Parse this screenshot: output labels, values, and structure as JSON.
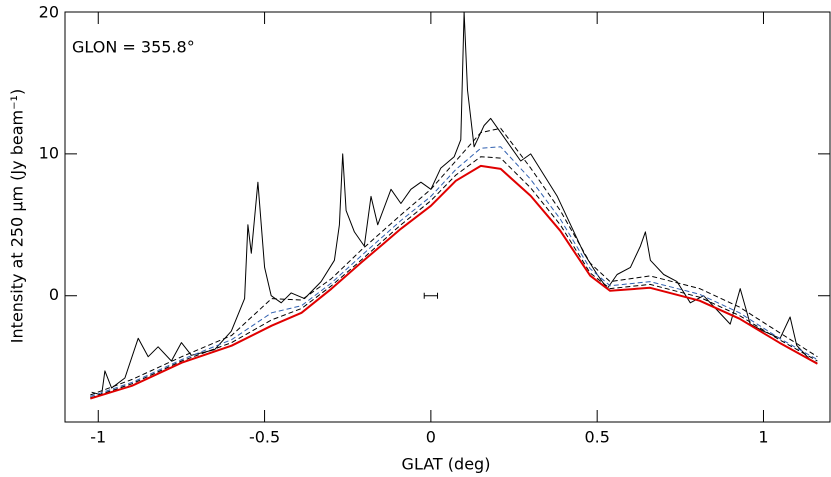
{
  "chart_data": {
    "type": "line",
    "xlabel": "GLAT (deg)",
    "ylabel": "Intensity at 250 μm (Jy beam⁻¹)",
    "annotation": "GLON = 355.8°",
    "xlim": [
      -1.1,
      1.2
    ],
    "ylim": [
      -8.9,
      20
    ],
    "xticks": [
      -1,
      -0.5,
      0,
      0.5,
      1
    ],
    "yticks": [
      0,
      10,
      20
    ],
    "errorbar": {
      "x": 0,
      "y": 0,
      "xerr": 0.02
    },
    "series": [
      {
        "color": "#000000",
        "style": "solid",
        "x": [
          -1.02,
          -0.99,
          -0.98,
          -0.96,
          -0.92,
          -0.88,
          -0.85,
          -0.82,
          -0.78,
          -0.75,
          -0.72,
          -0.65,
          -0.6,
          -0.56,
          -0.55,
          -0.54,
          -0.52,
          -0.5,
          -0.48,
          -0.45,
          -0.42,
          -0.38,
          -0.33,
          -0.29,
          -0.275,
          -0.265,
          -0.255,
          -0.23,
          -0.2,
          -0.18,
          -0.16,
          -0.12,
          -0.09,
          -0.06,
          -0.03,
          0.0,
          0.03,
          0.07,
          0.09,
          0.1,
          0.11,
          0.13,
          0.16,
          0.18,
          0.21,
          0.24,
          0.27,
          0.3,
          0.34,
          0.38,
          0.42,
          0.46,
          0.5,
          0.53,
          0.56,
          0.6,
          0.63,
          0.645,
          0.66,
          0.7,
          0.74,
          0.78,
          0.82,
          0.86,
          0.9,
          0.93,
          0.96,
          1.0,
          1.05,
          1.08,
          1.1,
          1.14,
          1.16
        ],
        "values": [
          -6.8,
          -7.0,
          -5.3,
          -6.5,
          -5.8,
          -3.0,
          -4.3,
          -3.6,
          -4.6,
          -3.3,
          -4.2,
          -3.8,
          -2.5,
          -0.2,
          5.0,
          3.0,
          8.0,
          2.0,
          0.0,
          -0.5,
          0.2,
          -0.2,
          1.0,
          2.5,
          5.0,
          10.0,
          6.0,
          4.5,
          3.5,
          7.0,
          5.0,
          7.5,
          6.5,
          7.5,
          8.0,
          7.5,
          9.0,
          9.8,
          11.0,
          20.0,
          14.5,
          10.5,
          12.0,
          12.5,
          11.5,
          10.5,
          9.5,
          10.0,
          8.5,
          7.0,
          5.0,
          3.0,
          1.5,
          0.5,
          1.5,
          2.0,
          3.5,
          4.5,
          2.5,
          1.5,
          1.0,
          -0.5,
          0.0,
          -1.0,
          -2.0,
          0.5,
          -2.0,
          -2.5,
          -3.0,
          -1.5,
          -3.5,
          -4.5,
          -4.7
        ]
      },
      {
        "color": "#000000",
        "style": "dashed",
        "x": [
          -1.024,
          -0.898,
          -0.749,
          -0.599,
          -0.479,
          -0.389,
          -0.299,
          -0.21,
          -0.09,
          0.0,
          0.075,
          0.15,
          0.21,
          0.3,
          0.389,
          0.479,
          0.539,
          0.659,
          0.808,
          0.928,
          1.048,
          1.162
        ],
        "values": [
          -7.0,
          -5.9,
          -4.3,
          -2.8,
          -0.2,
          -0.3,
          1.2,
          3.2,
          5.7,
          7.5,
          9.5,
          11.5,
          11.8,
          9.0,
          6.0,
          2.3,
          1.0,
          1.4,
          0.5,
          -0.8,
          -2.6,
          -4.3
        ]
      },
      {
        "color": "#3060b0",
        "style": "dashed",
        "x": [
          -1.024,
          -0.898,
          -0.749,
          -0.599,
          -0.479,
          -0.389,
          -0.299,
          -0.21,
          -0.09,
          0.0,
          0.075,
          0.15,
          0.21,
          0.3,
          0.389,
          0.479,
          0.539,
          0.659,
          0.808,
          0.928,
          1.048,
          1.162
        ],
        "values": [
          -7.1,
          -6.1,
          -4.5,
          -3.1,
          -1.2,
          -0.7,
          0.9,
          2.8,
          5.3,
          7.0,
          8.9,
          10.4,
          10.5,
          8.2,
          5.4,
          1.9,
          0.7,
          1.0,
          0.1,
          -1.2,
          -3.0,
          -4.5
        ]
      },
      {
        "color": "#000000",
        "style": "dashed",
        "x": [
          -1.024,
          -0.898,
          -0.749,
          -0.599,
          -0.479,
          -0.389,
          -0.299,
          -0.21,
          -0.09,
          0.0,
          0.075,
          0.15,
          0.21,
          0.3,
          0.389,
          0.479,
          0.539,
          0.659,
          0.808,
          0.928,
          1.048,
          1.162
        ],
        "values": [
          -7.2,
          -6.2,
          -4.6,
          -3.3,
          -1.7,
          -0.9,
          0.7,
          2.5,
          5.0,
          6.7,
          8.5,
          9.8,
          9.7,
          7.6,
          5.0,
          1.6,
          0.5,
          0.8,
          -0.1,
          -1.4,
          -3.1,
          -4.6
        ]
      },
      {
        "color": "#e00000",
        "style": "solid",
        "x": [
          -1.024,
          -0.898,
          -0.749,
          -0.599,
          -0.479,
          -0.389,
          -0.299,
          -0.21,
          -0.09,
          0.0,
          0.075,
          0.15,
          0.21,
          0.3,
          0.389,
          0.479,
          0.539,
          0.659,
          0.808,
          0.928,
          1.048,
          1.162
        ],
        "values": [
          -7.25,
          -6.34,
          -4.72,
          -3.52,
          -2.11,
          -1.2,
          0.49,
          2.32,
          4.72,
          6.34,
          8.1,
          9.15,
          8.94,
          7.04,
          4.58,
          1.41,
          0.35,
          0.56,
          -0.35,
          -1.62,
          -3.31,
          -4.79
        ]
      }
    ]
  }
}
